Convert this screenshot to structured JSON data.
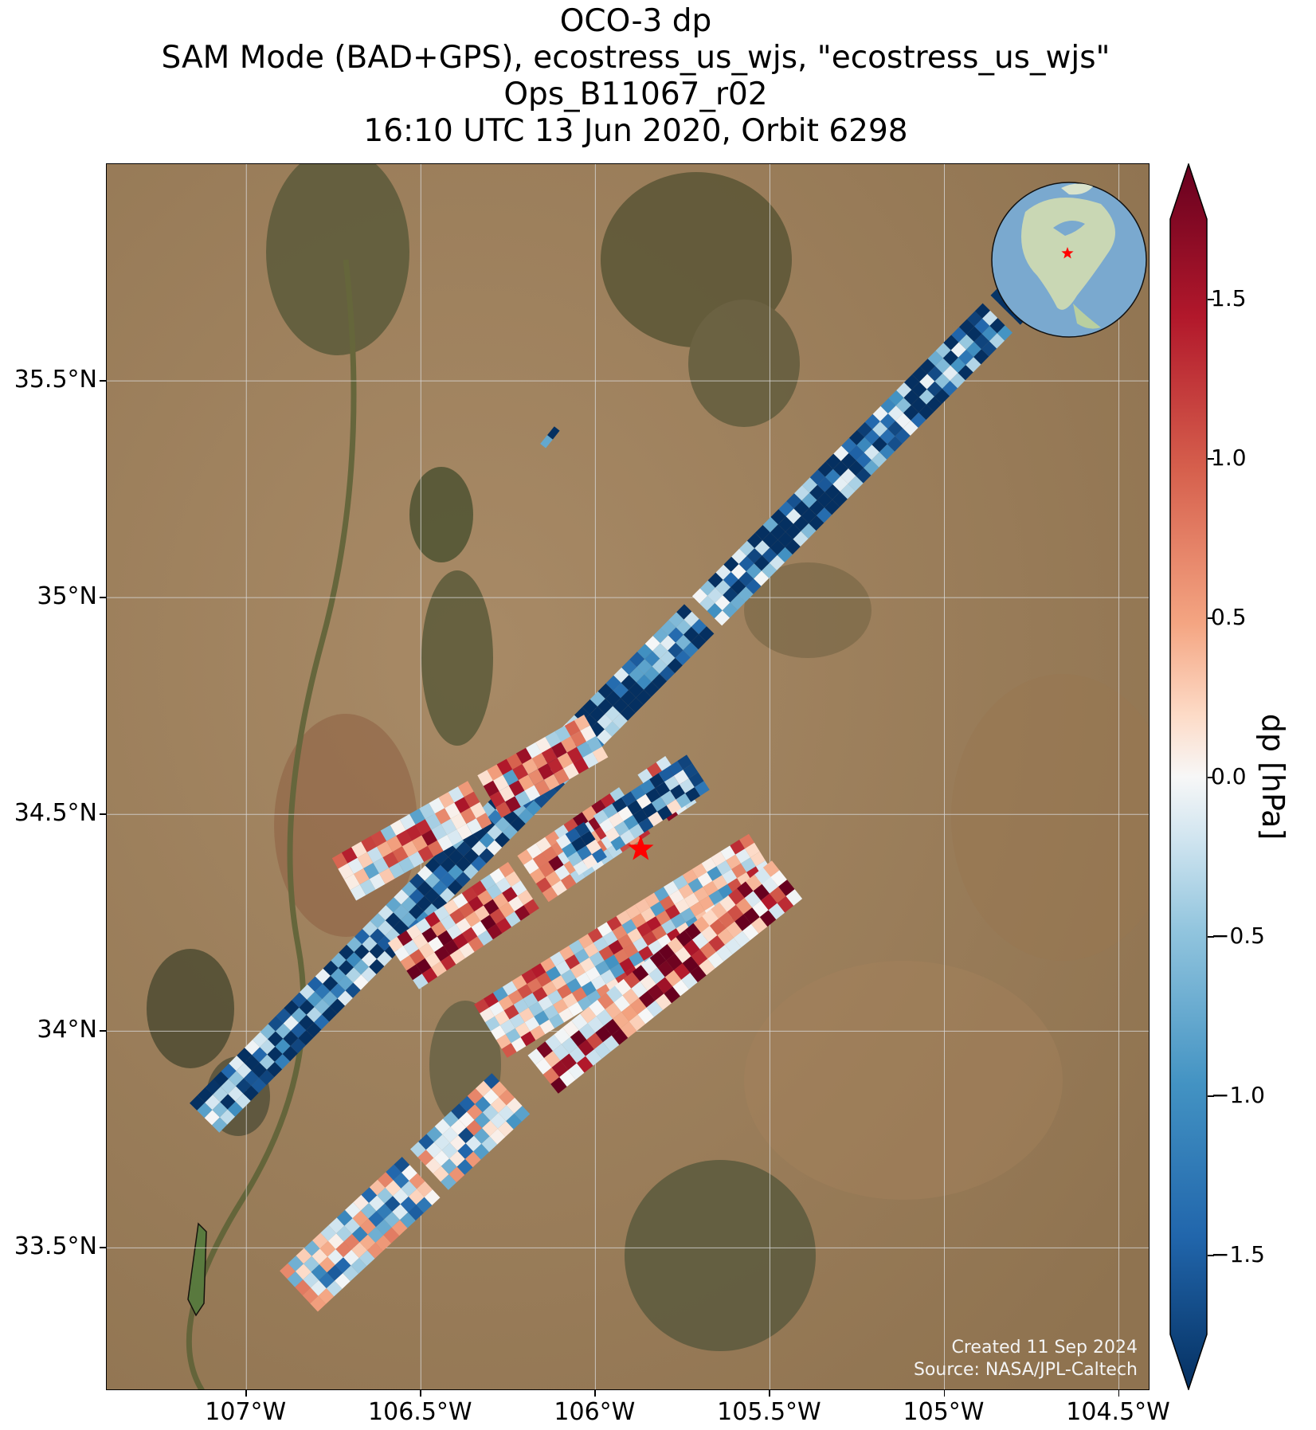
{
  "title": {
    "line1": "OCO-3 dp",
    "line2": "SAM Mode (BAD+GPS), ecostress_us_wjs, \"ecostress_us_wjs\"",
    "line3": "Ops_B11067_r02",
    "line4": "16:10 UTC 13 Jun 2020, Orbit 6298"
  },
  "map": {
    "lon_range": [
      -107.4,
      -104.41
    ],
    "lat_range": [
      33.17,
      36.0
    ],
    "x_ticks": [
      {
        "lon": -107.0,
        "label": "107°W"
      },
      {
        "lon": -106.5,
        "label": "106.5°W"
      },
      {
        "lon": -106.0,
        "label": "106°W"
      },
      {
        "lon": -105.5,
        "label": "105.5°W"
      },
      {
        "lon": -105.0,
        "label": "105°W"
      },
      {
        "lon": -104.5,
        "label": "104.5°W"
      }
    ],
    "y_ticks": [
      {
        "lat": 35.5,
        "label": "35.5°N"
      },
      {
        "lat": 35.0,
        "label": "35°N"
      },
      {
        "lat": 34.5,
        "label": "34.5°N"
      },
      {
        "lat": 34.0,
        "label": "34°N"
      },
      {
        "lat": 33.5,
        "label": "33.5°N"
      }
    ],
    "target_marker": {
      "lon": -105.87,
      "lat": 34.42,
      "color": "#ff0000"
    },
    "globe_marker_color": "#ff0000",
    "credit_line1": "Created 11 Sep 2024",
    "credit_line2": "Source: NASA/JPL-Caltech"
  },
  "colorbar": {
    "label": "dp [hPa]",
    "range": [
      -1.75,
      1.75
    ],
    "extend": "both",
    "colormap": "RdBu_r",
    "ticks": [
      {
        "value": 1.5,
        "label": "1.5"
      },
      {
        "value": 1.0,
        "label": "1.0"
      },
      {
        "value": 0.5,
        "label": "0.5"
      },
      {
        "value": 0.0,
        "label": "0.0"
      },
      {
        "value": -0.5,
        "label": "−0.5"
      },
      {
        "value": -1.0,
        "label": "−1.0"
      },
      {
        "value": -1.5,
        "label": "−1.5"
      }
    ]
  },
  "chart_data": {
    "type": "heatmap",
    "title": "OCO-3 dp",
    "colorbar_label": "dp [hPa]",
    "xlim": [
      -107.4,
      -104.41
    ],
    "ylim": [
      33.17,
      36.0
    ],
    "grid": true,
    "swaths": [
      {
        "start": [
          -107.12,
          33.8
        ],
        "end": [
          -104.78,
          35.7
        ],
        "width_deg": 0.12,
        "mean_dp": -1.3
      },
      {
        "start": [
          -106.72,
          34.35
        ],
        "end": [
          -106.0,
          34.68
        ],
        "width_deg": 0.14,
        "mean_dp": 0.3
      },
      {
        "start": [
          -106.55,
          34.15
        ],
        "end": [
          -105.72,
          34.6
        ],
        "width_deg": 0.16,
        "mean_dp": 0.7
      },
      {
        "start": [
          -106.3,
          34.0
        ],
        "end": [
          -105.5,
          34.4
        ],
        "width_deg": 0.18,
        "mean_dp": 0.2
      },
      {
        "start": [
          -106.08,
          34.4
        ],
        "end": [
          -105.7,
          34.6
        ],
        "width_deg": 0.12,
        "mean_dp": -0.9
      },
      {
        "start": [
          -106.85,
          33.4
        ],
        "end": [
          -106.25,
          33.85
        ],
        "width_deg": 0.16,
        "mean_dp": -0.3
      },
      {
        "start": [
          -106.15,
          33.9
        ],
        "end": [
          -105.45,
          34.35
        ],
        "width_deg": 0.14,
        "mean_dp": 0.8
      },
      {
        "start": [
          -106.15,
          35.35
        ],
        "end": [
          -106.1,
          35.4
        ],
        "width_deg": 0.02,
        "mean_dp": -1.4
      }
    ]
  }
}
